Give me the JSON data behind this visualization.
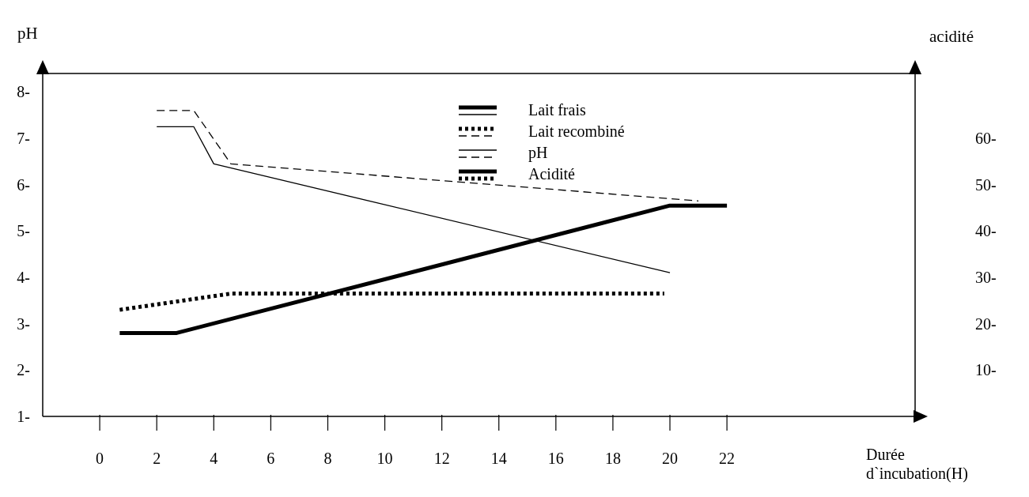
{
  "chart_data": {
    "type": "line",
    "ylabel": "pH",
    "y2label": "acidité",
    "xlabel": "Durée d`incubation(H)",
    "xlim": [
      -2,
      28.6
    ],
    "xticks": [
      0,
      2,
      4,
      6,
      8,
      10,
      12,
      14,
      16,
      18,
      20,
      22
    ],
    "ylim": [
      1,
      8.4
    ],
    "yticks": [
      {
        "value": 1,
        "label": "1-"
      },
      {
        "value": 2,
        "label": "2-"
      },
      {
        "value": 3,
        "label": "3-"
      },
      {
        "value": 4,
        "label": "4-"
      },
      {
        "value": 5,
        "label": "5-"
      },
      {
        "value": 6,
        "label": "6-"
      },
      {
        "value": 7,
        "label": "7-"
      },
      {
        "value": 8,
        "label": "8-"
      }
    ],
    "y2lim": [
      0,
      74
    ],
    "y2ticks": [
      {
        "value": 10,
        "label": "10-"
      },
      {
        "value": 20,
        "label": "20-"
      },
      {
        "value": 30,
        "label": "30-"
      },
      {
        "value": 40,
        "label": "40-"
      },
      {
        "value": 50,
        "label": "50-"
      },
      {
        "value": 60,
        "label": "60-"
      }
    ],
    "marker": "none",
    "annotations": [
      "Lait frais",
      "Lait recombiné",
      "pH",
      "Acidité"
    ],
    "series": [
      {
        "color": "#000000",
        "line_style": "solid",
        "x": [
          2,
          3.3,
          4,
          20
        ],
        "values": [
          7.25,
          7.25,
          6.45,
          4.1
        ]
      },
      {
        "color": "#000000",
        "line_style": "dashed",
        "x": [
          2,
          3.3,
          4.6,
          21
        ],
        "values": [
          7.6,
          7.6,
          6.45,
          5.65
        ]
      },
      {
        "color": "#000000",
        "line_style": "solid",
        "axis": "y2",
        "x": [
          0.7,
          2.7,
          20,
          22
        ],
        "values": [
          18,
          18,
          45.5,
          45.5
        ]
      },
      {
        "color": "#000000",
        "line_style": "dotted",
        "axis": "y2",
        "x": [
          0.7,
          4.6,
          19.8
        ],
        "values": [
          23,
          26.5,
          26.5
        ]
      }
    ]
  }
}
